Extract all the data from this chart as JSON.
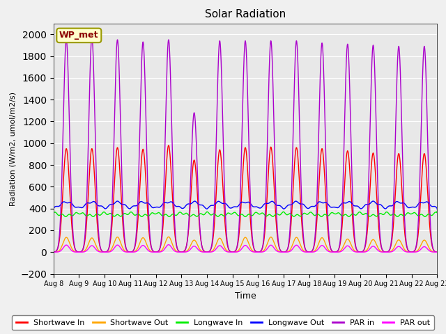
{
  "title": "Solar Radiation",
  "xlabel": "Time",
  "ylabel": "Radiation (W/m2, umol/m2/s)",
  "ylim": [
    -200,
    2100
  ],
  "yticks": [
    -200,
    0,
    200,
    400,
    600,
    800,
    1000,
    1200,
    1400,
    1600,
    1800,
    2000
  ],
  "n_days": 15,
  "points_per_day": 288,
  "shortwave_in_color": "#ff0000",
  "shortwave_out_color": "#ffa500",
  "longwave_in_color": "#00ee00",
  "longwave_out_color": "#0000ff",
  "par_in_color": "#aa00cc",
  "par_out_color": "#ff00ff",
  "background_color": "#e8e8e8",
  "legend_labels": [
    "Shortwave In",
    "Shortwave Out",
    "Longwave In",
    "Longwave Out",
    "PAR in",
    "PAR out"
  ],
  "wp_met_label": "WP_met",
  "line_width": 1.0,
  "fig_face_color": "#f0f0f0"
}
